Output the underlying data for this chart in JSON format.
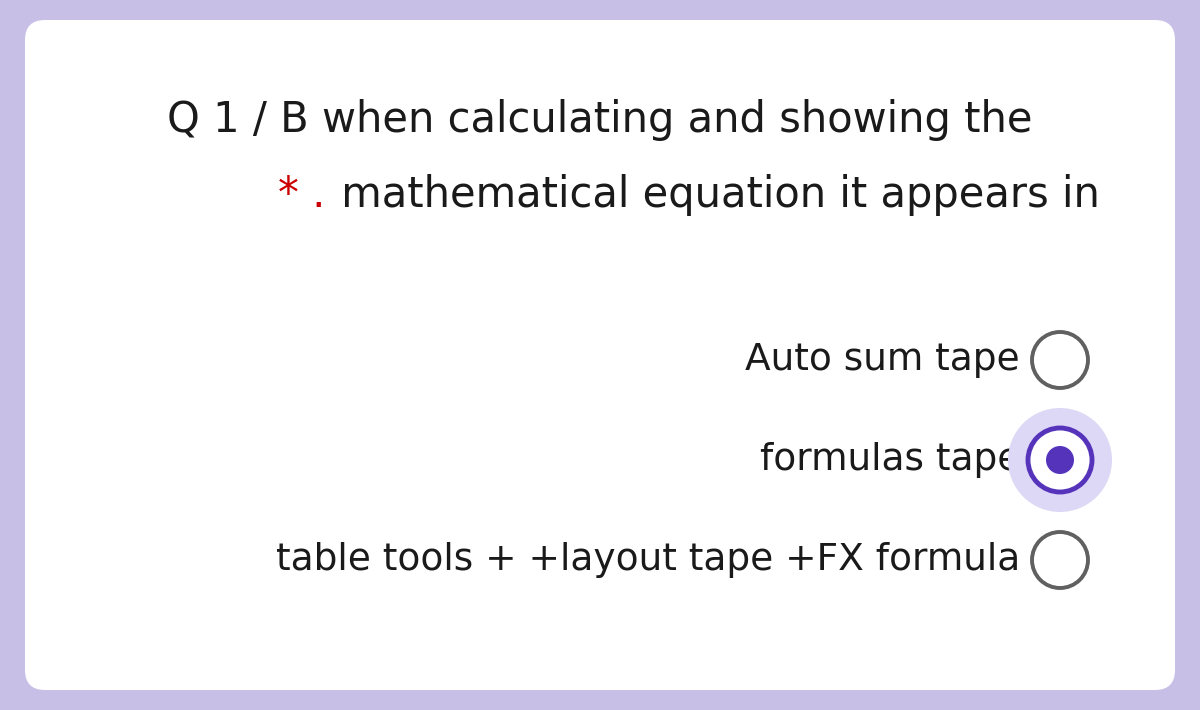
{
  "bg_color": "#c8bfe7",
  "card_color": "#ffffff",
  "title_line1": "Q 1 / B when calculating and showing the",
  "title_line2_star": "* .",
  "title_line2_rest": " mathematical equation it appears in",
  "star_color": "#cc0000",
  "options": [
    {
      "label": "Auto sum tape",
      "selected": false
    },
    {
      "label": "formulas tape",
      "selected": true
    },
    {
      "label": "table tools + +layout tape +FX formula",
      "selected": false
    }
  ],
  "text_color": "#1a1a1a",
  "radio_unsel_color": "#606060",
  "radio_sel_inner": "#5533bb",
  "radio_sel_outer_ring": "#5533bb",
  "radio_sel_mid": "#ffffff",
  "radio_sel_bg": "#ddd8f5",
  "font_size_title": 30,
  "font_size_options": 27
}
